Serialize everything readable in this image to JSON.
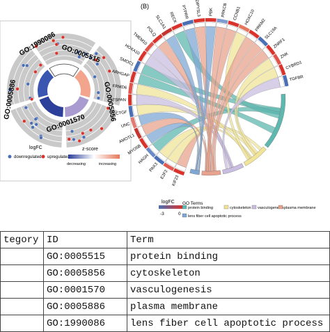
{
  "panelA": {
    "go_labels": [
      "GO:1990086",
      "GO:0005515",
      "GO:0005856",
      "GO:0001570",
      "GO:0005886"
    ],
    "legend_logfc_title": "logFC",
    "legend_down": "downregulated",
    "legend_up": "upregulated",
    "legend_zscore_title": "z-score",
    "legend_decreasing": "decreasing",
    "legend_increasing": "increasing"
  },
  "panelB": {
    "panel_label": "(B)",
    "genes": [
      "KIF23",
      "E2F2",
      "PAX3",
      "HAGH",
      "MYO5B",
      "AMOTL1",
      "UNC",
      "CTGF",
      "TSPAN",
      "FRMD6",
      "ARHGAP",
      "SMOC1",
      "HOXA10",
      "TMEM10",
      "POLQ",
      "SLC1A1",
      "RECK",
      "PTPRR",
      "DIPYSL3",
      "PBK",
      "PRKCB",
      "CCNB1",
      "HOXC10",
      "PRKM2",
      "SLC19A",
      "ZNRF1",
      "ZNK",
      "CYBRD1",
      "TGFBR"
    ],
    "legend_logfc_title": "logFC",
    "legend_min": "-3",
    "legend_max": "0",
    "go_terms_title": "GO Terms",
    "go_terms": [
      {
        "label": "protein binding",
        "color": "#5fb8b0"
      },
      {
        "label": "cytoskeleton",
        "color": "#f0e49a"
      },
      {
        "label": "vasculogenesis",
        "color": "#c9bde0"
      },
      {
        "label": "plasma membrane",
        "color": "#e8a38e"
      },
      {
        "label": "lens fiber cell apoptotic process",
        "color": "#7fa7d3"
      }
    ]
  },
  "table": {
    "headers": [
      "tegory",
      "ID",
      "Term"
    ],
    "rows": [
      {
        "category": "",
        "id": "GO:0005515",
        "term": "protein binding"
      },
      {
        "category": "",
        "id": "GO:0005856",
        "term": "cytoskeleton"
      },
      {
        "category": "",
        "id": "GO:0001570",
        "term": "vasculogenesis"
      },
      {
        "category": "",
        "id": "GO:0005886",
        "term": "plasma membrane"
      },
      {
        "category": "",
        "id": "GO:1990086",
        "term": "lens fiber cell apoptotic process"
      }
    ]
  },
  "colors": {
    "up": "#d9332b",
    "down": "#4a6fb5",
    "zscore_low": "#2c3f9a",
    "zscore_high": "#e5795b",
    "ring_bg": "#bdbdbd"
  }
}
